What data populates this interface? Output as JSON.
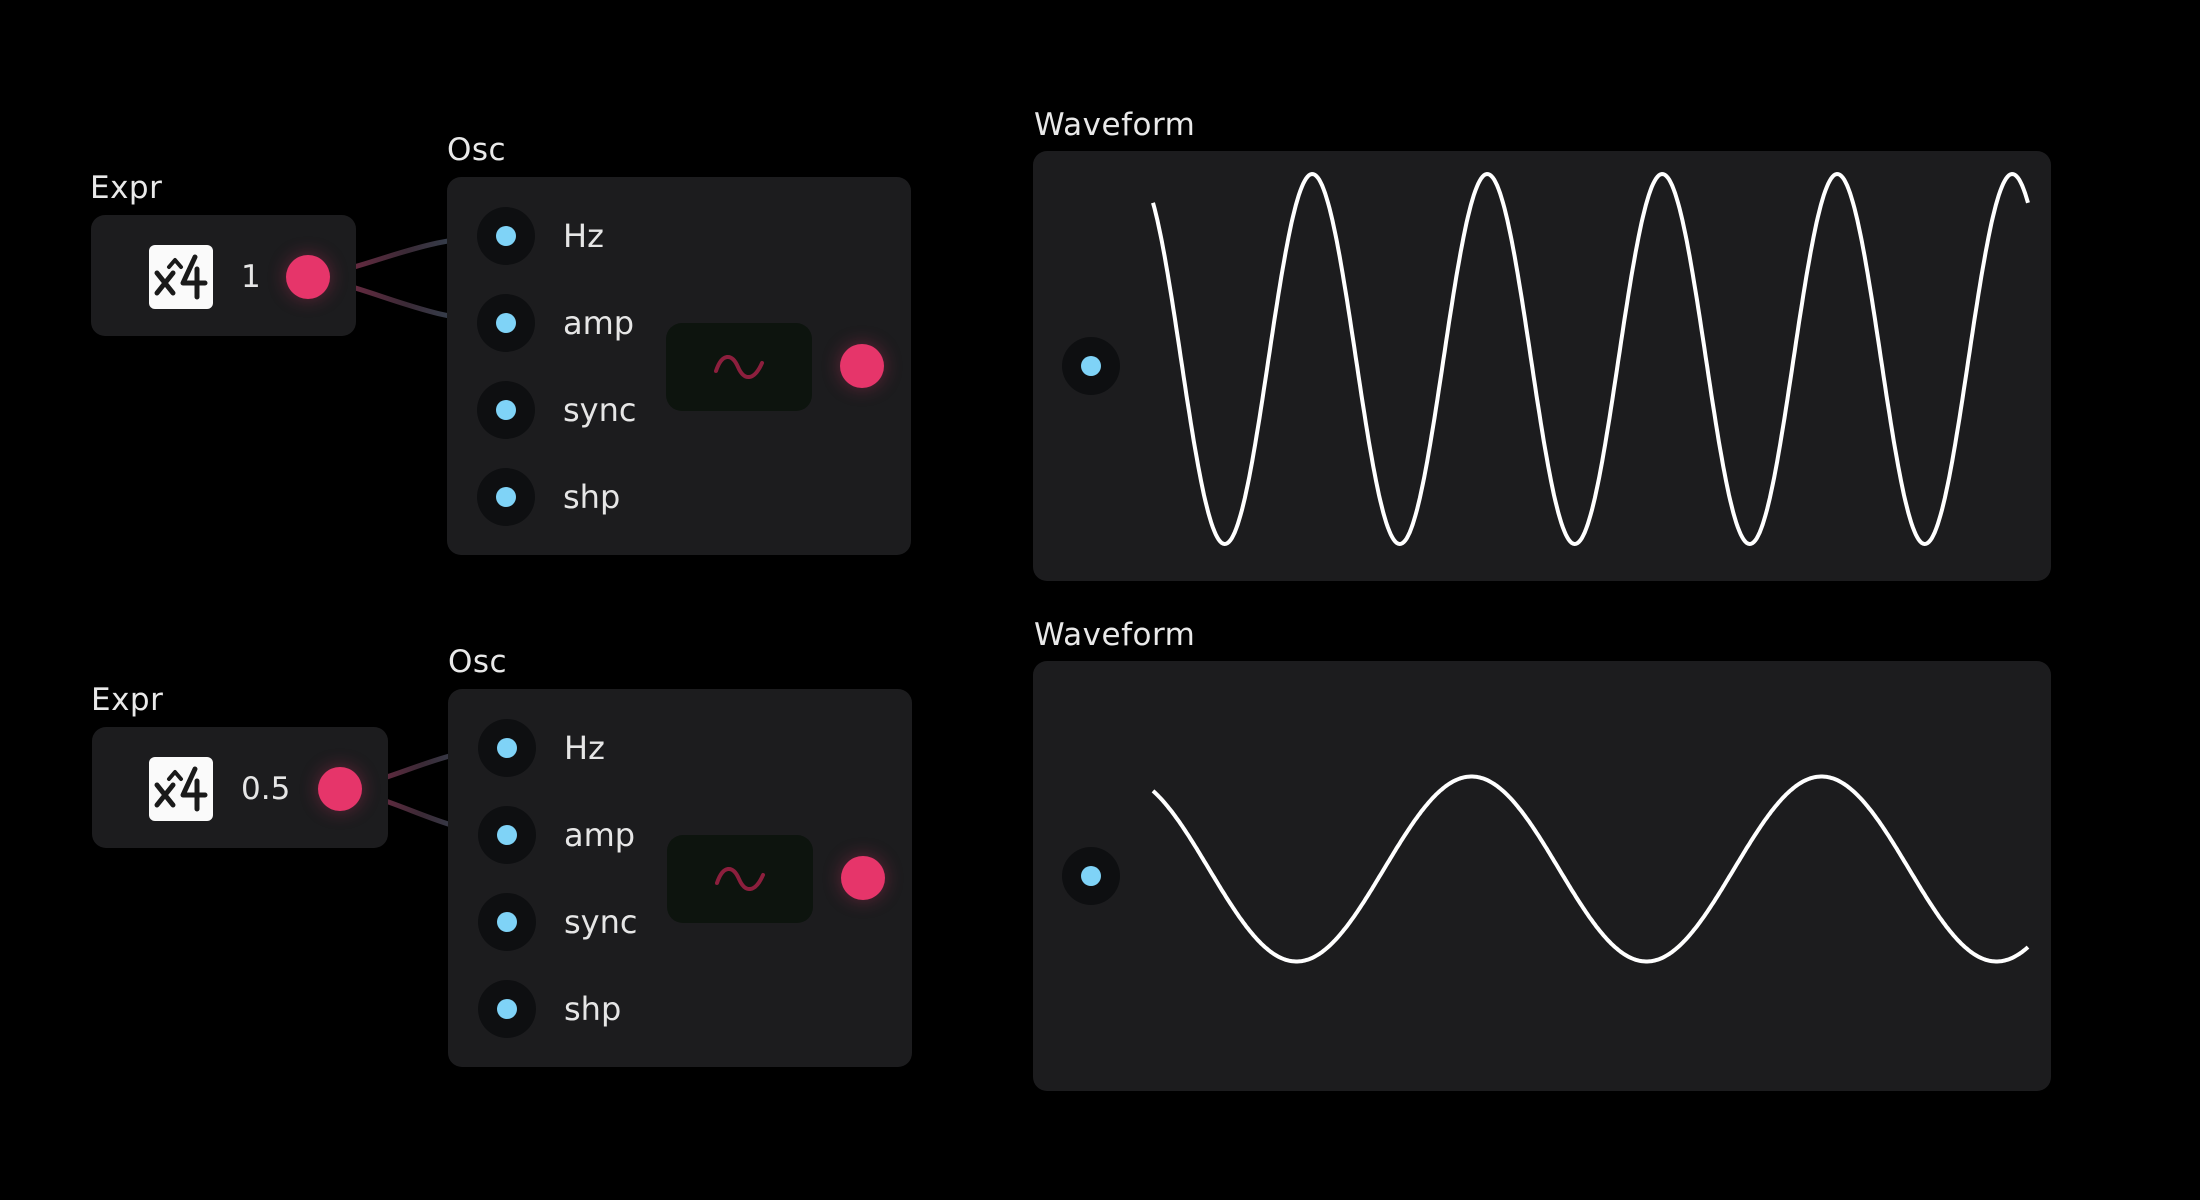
{
  "patches": [
    {
      "expr": {
        "title": "Expr",
        "value": "1",
        "icon": "expression-x4-icon"
      },
      "osc": {
        "title": "Osc",
        "ports": [
          "Hz",
          "amp",
          "sync",
          "shp"
        ],
        "shape_icon": "sine-wave-icon"
      },
      "waveform": {
        "title": "Waveform",
        "cycles": 5,
        "amplitude": 1
      }
    },
    {
      "expr": {
        "title": "Expr",
        "value": "0.5",
        "icon": "expression-x4-icon"
      },
      "osc": {
        "title": "Osc",
        "ports": [
          "Hz",
          "amp",
          "sync",
          "shp"
        ],
        "shape_icon": "sine-wave-icon"
      },
      "waveform": {
        "title": "Waveform",
        "cycles": 2.5,
        "amplitude": 0.5
      }
    }
  ],
  "colors": {
    "background": "#000000",
    "node": "#1c1c1e",
    "output_port": "#e6356a",
    "input_port": "#7fd3f7",
    "trace": "#ffffff"
  }
}
